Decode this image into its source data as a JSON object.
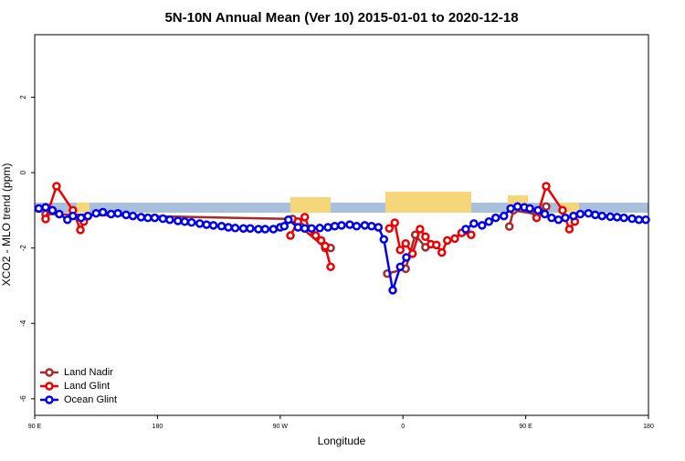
{
  "chart_data": {
    "type": "line",
    "title": "5N-10N Annual Mean (Ver 10)   2015-01-01 to 2020-12-18",
    "x_label": "Longitude",
    "y_label": "XCO2 - MLO trend (ppm)",
    "xlim": [
      90,
      540
    ],
    "xticks": [
      {
        "value": 90,
        "label": "90 E"
      },
      {
        "value": 180,
        "label": "180"
      },
      {
        "value": 270,
        "label": "90 W"
      },
      {
        "value": 360,
        "label": "0"
      },
      {
        "value": 450,
        "label": "90 E"
      },
      {
        "value": 540,
        "label": "180"
      }
    ],
    "ylim": [
      -6.44,
      3.66
    ],
    "yticks": [
      2,
      0,
      -2,
      -4,
      -6
    ],
    "legend": "bottom-left",
    "series": [
      {
        "name": "Land Nadir",
        "color": "#a52a2a",
        "x": [
          98,
          279,
          285,
          303,
          307,
          330,
          348.5,
          362,
          369,
          376.5,
          400,
          438,
          441,
          458,
          465
        ],
        "values": [
          -1.1,
          -1.23,
          -1.43,
          -2.0,
          -2.0,
          null,
          -2.68,
          -2.55,
          -1.65,
          -1.98,
          null,
          -1.43,
          -1.0,
          -1.1,
          -0.9
        ]
      },
      {
        "name": "Land Glint",
        "color": "#ee0000",
        "x": [
          98,
          106,
          118,
          123.5,
          126,
          200,
          277.5,
          283,
          288,
          292,
          296,
          300,
          303,
          307,
          330,
          350,
          354,
          358,
          362,
          367,
          372.5,
          376.5,
          380.5,
          384.5,
          388.5,
          392.5,
          398,
          403,
          410,
          430,
          458,
          465,
          477,
          482,
          486
        ],
        "values": [
          -1.23,
          -0.36,
          -1.0,
          -1.52,
          -1.3,
          null,
          -1.67,
          -1.3,
          -1.18,
          -1.55,
          -1.67,
          -1.8,
          -1.95,
          -2.5,
          null,
          -1.48,
          -1.33,
          -2.05,
          -1.88,
          -2.15,
          -1.5,
          -1.7,
          -1.9,
          -1.92,
          -2.12,
          -1.8,
          -1.75,
          -1.6,
          -1.65,
          null,
          -1.2,
          -0.36,
          -1.0,
          -1.5,
          -1.3
        ]
      },
      {
        "name": "Ocean Glint",
        "color": "#0000ee",
        "x": [
          93,
          98,
          103,
          108,
          114,
          118,
          124,
          129,
          135,
          140,
          146,
          151,
          157,
          162,
          168,
          173,
          178,
          184,
          189,
          195,
          200,
          205,
          211,
          216,
          221,
          227,
          232,
          237,
          243,
          248,
          254,
          259,
          265,
          270,
          273,
          276,
          283,
          288,
          293,
          299,
          305,
          310,
          315,
          321,
          326,
          332,
          337,
          342,
          346,
          352.5,
          358,
          362.5,
          385,
          406,
          412,
          418,
          423,
          428,
          434,
          439,
          444,
          449,
          453,
          459,
          464,
          469,
          474,
          479,
          485,
          490,
          496,
          501,
          506,
          512,
          517,
          522,
          528,
          533,
          538
        ],
        "values": [
          -0.95,
          -0.92,
          -1.0,
          -1.1,
          -1.25,
          -1.15,
          -1.2,
          -1.15,
          -1.08,
          -1.05,
          -1.1,
          -1.08,
          -1.12,
          -1.15,
          -1.18,
          -1.2,
          -1.2,
          -1.22,
          -1.25,
          -1.28,
          -1.3,
          -1.32,
          -1.35,
          -1.38,
          -1.4,
          -1.42,
          -1.45,
          -1.47,
          -1.48,
          -1.48,
          -1.5,
          -1.5,
          -1.5,
          -1.45,
          -1.42,
          -1.25,
          -1.45,
          -1.48,
          -1.48,
          -1.47,
          -1.45,
          -1.42,
          -1.4,
          -1.38,
          -1.42,
          -1.4,
          -1.42,
          -1.45,
          -1.77,
          -3.12,
          -2.5,
          -2.25,
          null,
          -1.5,
          -1.35,
          -1.4,
          -1.3,
          -1.2,
          -1.15,
          -0.95,
          -0.9,
          -0.92,
          -0.95,
          -1.0,
          -1.1,
          -1.2,
          -1.25,
          -1.2,
          -1.15,
          -1.1,
          -1.08,
          -1.12,
          -1.15,
          -1.17,
          -1.18,
          -1.2,
          -1.22,
          -1.25,
          -1.25
        ]
      }
    ]
  }
}
